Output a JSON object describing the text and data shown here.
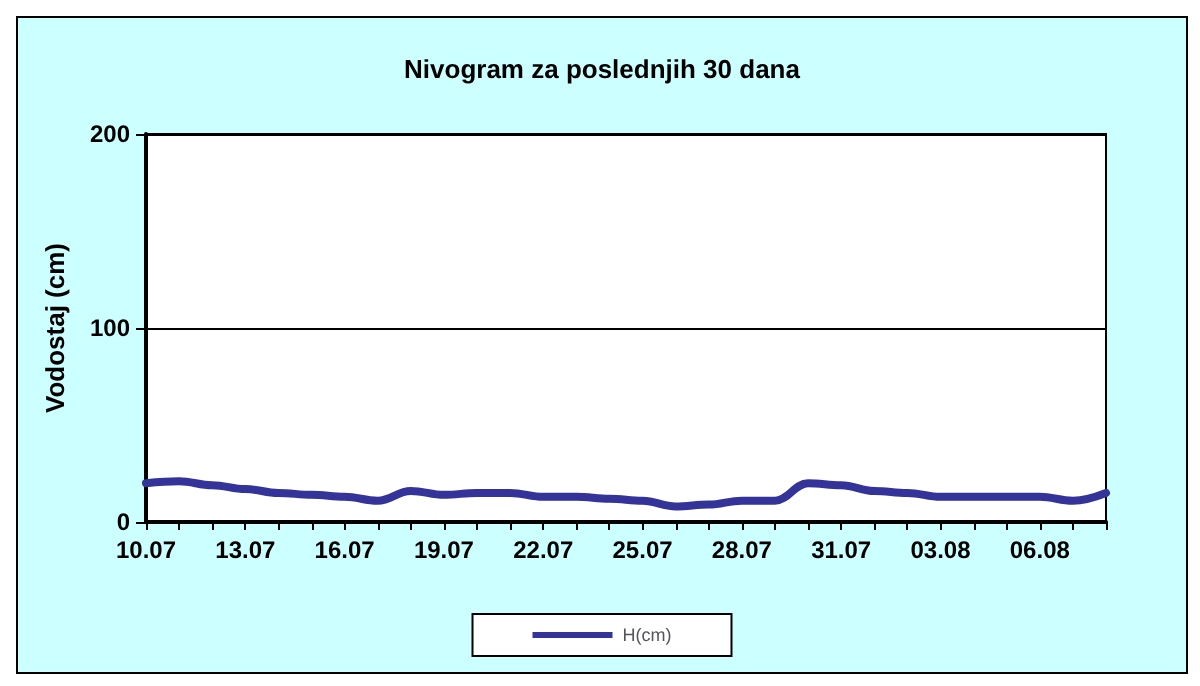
{
  "chart_data": {
    "type": "line",
    "title": "Nivogram za poslednjih 30 dana",
    "ylabel": "Vodostaj (cm)",
    "categories": [
      "10.07",
      null,
      null,
      "13.07",
      null,
      null,
      "16.07",
      null,
      null,
      "19.07",
      null,
      null,
      "22.07",
      null,
      null,
      "25.07",
      null,
      null,
      "28.07",
      null,
      null,
      "31.07",
      null,
      null,
      "03.08",
      null,
      null,
      "06.08",
      null,
      null
    ],
    "series": [
      {
        "name": "H(cm)",
        "color": "#333399",
        "values": [
          20,
          21,
          19,
          17,
          15,
          14,
          13,
          11,
          16,
          14,
          15,
          15,
          13,
          13,
          12,
          11,
          8,
          9,
          11,
          11,
          20,
          19,
          16,
          15,
          13,
          13,
          13,
          13,
          11,
          15
        ]
      }
    ],
    "ylim": [
      0,
      200
    ],
    "yticks": [
      0,
      100,
      200
    ],
    "grid": "y",
    "legend": "bottom",
    "marker": "none",
    "line_style": "solid"
  }
}
